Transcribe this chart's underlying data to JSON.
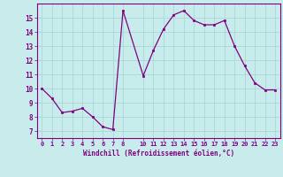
{
  "x": [
    0,
    1,
    2,
    3,
    4,
    5,
    6,
    7,
    8,
    10,
    11,
    12,
    13,
    14,
    15,
    16,
    17,
    18,
    19,
    20,
    21,
    22,
    23
  ],
  "y": [
    10.0,
    9.3,
    8.3,
    8.4,
    8.6,
    8.0,
    7.3,
    7.1,
    15.5,
    10.9,
    12.7,
    14.2,
    15.2,
    15.5,
    14.8,
    14.5,
    14.5,
    14.8,
    13.0,
    11.6,
    10.4,
    9.9,
    9.9
  ],
  "line_color": "#800080",
  "marker_color": "#800080",
  "bg_color": "#c8ecec",
  "grid_color": "#a8d8d8",
  "xlabel": "Windchill (Refroidissement éolien,°C)",
  "xlim": [
    -0.5,
    23.5
  ],
  "ylim": [
    6.5,
    16.0
  ],
  "yticks": [
    7,
    8,
    9,
    10,
    11,
    12,
    13,
    14,
    15
  ],
  "xticks": [
    0,
    1,
    2,
    3,
    4,
    5,
    6,
    7,
    8,
    10,
    11,
    12,
    13,
    14,
    15,
    16,
    17,
    18,
    19,
    20,
    21,
    22,
    23
  ]
}
